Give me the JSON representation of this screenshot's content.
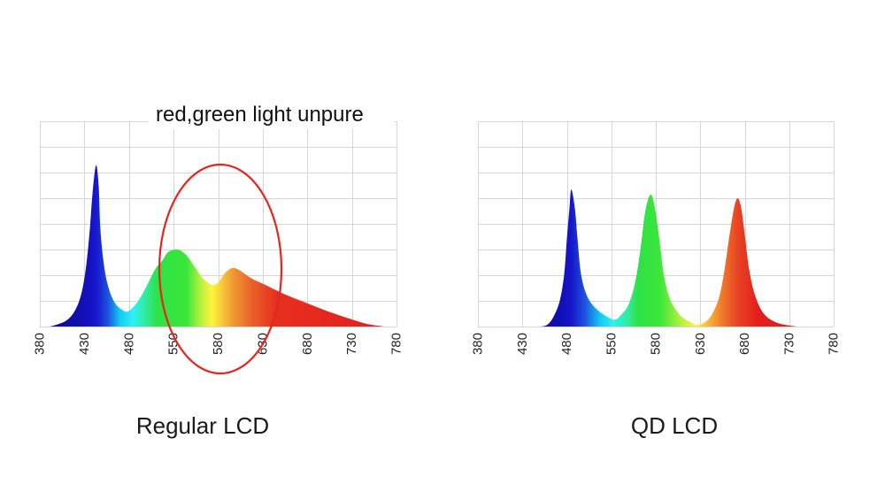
{
  "chart_data": [
    {
      "type": "area",
      "title": "Regular LCD",
      "annotation": "red,green light unpure",
      "xlabel": "",
      "ylabel": "",
      "xlim": [
        380,
        780
      ],
      "ylim": [
        0,
        8
      ],
      "grid": true,
      "x_tick_labels": [
        "380",
        "430",
        "480",
        "550",
        "580",
        "630",
        "680",
        "730",
        "780"
      ],
      "series": [
        {
          "x": [
            390,
            395,
            410,
            420,
            427,
            432,
            436,
            439,
            443,
            446,
            448,
            452,
            457,
            464,
            472,
            479,
            489,
            499,
            509,
            517,
            524,
            534,
            544,
            554,
            564,
            574,
            581,
            588,
            596,
            603,
            618,
            633,
            653,
            678,
            703,
            727,
            747,
            767
          ],
          "y": [
            0,
            0.03,
            0.24,
            0.66,
            1.34,
            2.38,
            3.76,
            5.14,
            6.28,
            5.48,
            3.76,
            2.38,
            1.52,
            0.93,
            0.66,
            0.59,
            0.93,
            1.52,
            2.21,
            2.55,
            2.9,
            3.0,
            2.79,
            2.31,
            1.83,
            1.62,
            1.76,
            2.1,
            2.28,
            2.21,
            1.86,
            1.62,
            1.28,
            0.93,
            0.59,
            0.31,
            0.1,
            0
          ]
        }
      ],
      "fill_gradient": [
        {
          "nm": 380,
          "color": "#120a86"
        },
        {
          "nm": 425,
          "color": "#120eb0"
        },
        {
          "nm": 443,
          "color": "#1616cc"
        },
        {
          "nm": 456,
          "color": "#1e50e0"
        },
        {
          "nm": 470,
          "color": "#12cdf0"
        },
        {
          "nm": 484,
          "color": "#2ef0f6"
        },
        {
          "nm": 498,
          "color": "#30eca0"
        },
        {
          "nm": 512,
          "color": "#2ee246"
        },
        {
          "nm": 545,
          "color": "#3ce63a"
        },
        {
          "nm": 560,
          "color": "#b4f03e"
        },
        {
          "nm": 573,
          "color": "#fff53c"
        },
        {
          "nm": 585,
          "color": "#f8c63a"
        },
        {
          "nm": 598,
          "color": "#f09432"
        },
        {
          "nm": 618,
          "color": "#ea6028"
        },
        {
          "nm": 645,
          "color": "#e6301f"
        },
        {
          "nm": 780,
          "color": "#e41c1c"
        }
      ],
      "highlight": {
        "shape": "ellipse",
        "color": "#e8241e"
      }
    },
    {
      "type": "area",
      "title": "QD LCD",
      "xlabel": "",
      "ylabel": "",
      "xlim": [
        380,
        780
      ],
      "ylim": [
        0,
        8
      ],
      "grid": true,
      "x_tick_labels": [
        "380",
        "430",
        "480",
        "550",
        "580",
        "630",
        "680",
        "730",
        "780"
      ],
      "series": [
        {
          "x": [
            450,
            458,
            465,
            472,
            477,
            480,
            483,
            485,
            489,
            492,
            496,
            503,
            514,
            529,
            535,
            539,
            549,
            557,
            563,
            568,
            574,
            579,
            584,
            589,
            596,
            607,
            619,
            627,
            637,
            645,
            652,
            658,
            663,
            668,
            672,
            676,
            680,
            685,
            692,
            702,
            717,
            738
          ],
          "y": [
            0,
            0.07,
            0.38,
            1.0,
            2.03,
            3.41,
            4.62,
            5.34,
            4.62,
            3.41,
            2.03,
            1.17,
            0.66,
            0.31,
            0.28,
            0.38,
            0.83,
            1.76,
            3.07,
            4.45,
            5.14,
            4.62,
            3.41,
            2.03,
            1.07,
            0.45,
            0.17,
            0.07,
            0.21,
            0.59,
            1.24,
            2.38,
            3.59,
            4.62,
            5.0,
            4.62,
            3.59,
            2.21,
            1.17,
            0.48,
            0.14,
            0
          ]
        }
      ],
      "fill_gradient": [
        {
          "nm": 380,
          "color": "#120a86"
        },
        {
          "nm": 470,
          "color": "#120eb0"
        },
        {
          "nm": 485,
          "color": "#1616cc"
        },
        {
          "nm": 500,
          "color": "#1e50e0"
        },
        {
          "nm": 518,
          "color": "#12cdf0"
        },
        {
          "nm": 532,
          "color": "#2ef0f0"
        },
        {
          "nm": 548,
          "color": "#30eca0"
        },
        {
          "nm": 560,
          "color": "#2ee246"
        },
        {
          "nm": 585,
          "color": "#3ce63a"
        },
        {
          "nm": 608,
          "color": "#b4f03e"
        },
        {
          "nm": 626,
          "color": "#fff53c"
        },
        {
          "nm": 640,
          "color": "#f8b23a"
        },
        {
          "nm": 655,
          "color": "#ee7a2c"
        },
        {
          "nm": 672,
          "color": "#e84424"
        },
        {
          "nm": 695,
          "color": "#e41e1c"
        },
        {
          "nm": 780,
          "color": "#e41c1c"
        }
      ]
    }
  ]
}
